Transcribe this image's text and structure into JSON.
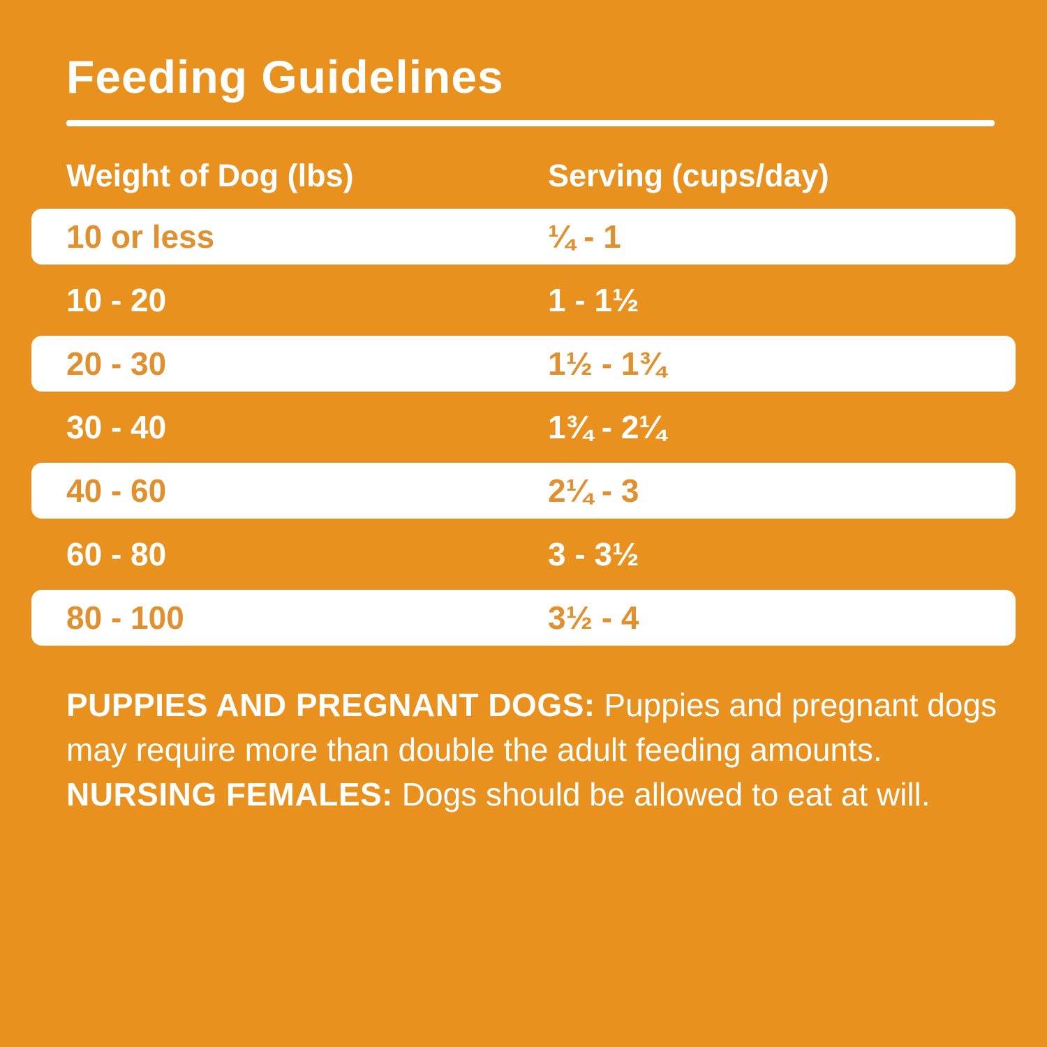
{
  "title": "Feeding Guidelines",
  "colors": {
    "background_orange": "#E8911E",
    "row_white": "#FFFFFF",
    "row_text_orange": "#E0902F",
    "text_white": "#FFFFFF"
  },
  "table": {
    "headers": {
      "weight": "Weight of Dog (lbs)",
      "serving": "Serving (cups/day)"
    },
    "rows": [
      {
        "weight": "10 or less",
        "serving": "¼ - 1"
      },
      {
        "weight": "10 - 20",
        "serving": "1 - 1½"
      },
      {
        "weight": "20 - 30",
        "serving": "1½ - 1¾"
      },
      {
        "weight": "30 - 40",
        "serving": "1¾ - 2¼"
      },
      {
        "weight": "40 - 60",
        "serving": "2¼ - 3"
      },
      {
        "weight": "60 - 80",
        "serving": "3 - 3½"
      },
      {
        "weight": "80 - 100",
        "serving": "3½ - 4"
      }
    ]
  },
  "footnote": {
    "segments": [
      {
        "text": "PUPPIES AND PREGNANT DOGS:",
        "bold": true
      },
      {
        "text": " Puppies and pregnant dogs may require more than double the adult feeding amounts. ",
        "bold": false
      },
      {
        "text": "NURSING FEMALES:",
        "bold": true
      },
      {
        "text": " Dogs should be allowed to eat at will.",
        "bold": false
      }
    ]
  },
  "chart_data": {
    "type": "table",
    "title": "Feeding Guidelines",
    "columns": [
      "Weight of Dog (lbs)",
      "Serving (cups/day)"
    ],
    "rows": [
      [
        "10 or less",
        "¼ - 1"
      ],
      [
        "10 - 20",
        "1 - 1½"
      ],
      [
        "20 - 30",
        "1½ - 1¾"
      ],
      [
        "30 - 40",
        "1¾ - 2¼"
      ],
      [
        "40 - 60",
        "2¼ - 3"
      ],
      [
        "60 - 80",
        "3 - 3½"
      ],
      [
        "80 - 100",
        "3½ - 4"
      ]
    ],
    "serving_ranges_numeric": [
      {
        "weight_lbs": [
          0,
          10
        ],
        "cups_per_day": [
          0.25,
          1
        ]
      },
      {
        "weight_lbs": [
          10,
          20
        ],
        "cups_per_day": [
          1,
          1.5
        ]
      },
      {
        "weight_lbs": [
          20,
          30
        ],
        "cups_per_day": [
          1.5,
          1.75
        ]
      },
      {
        "weight_lbs": [
          30,
          40
        ],
        "cups_per_day": [
          1.75,
          2.25
        ]
      },
      {
        "weight_lbs": [
          40,
          60
        ],
        "cups_per_day": [
          2.25,
          3
        ]
      },
      {
        "weight_lbs": [
          60,
          80
        ],
        "cups_per_day": [
          3,
          3.5
        ]
      },
      {
        "weight_lbs": [
          80,
          100
        ],
        "cups_per_day": [
          3.5,
          4
        ]
      }
    ],
    "note": "PUPPIES AND PREGNANT DOGS: Puppies and pregnant dogs may require more than double the adult feeding amounts. NURSING FEMALES: Dogs should be allowed to eat at will."
  }
}
